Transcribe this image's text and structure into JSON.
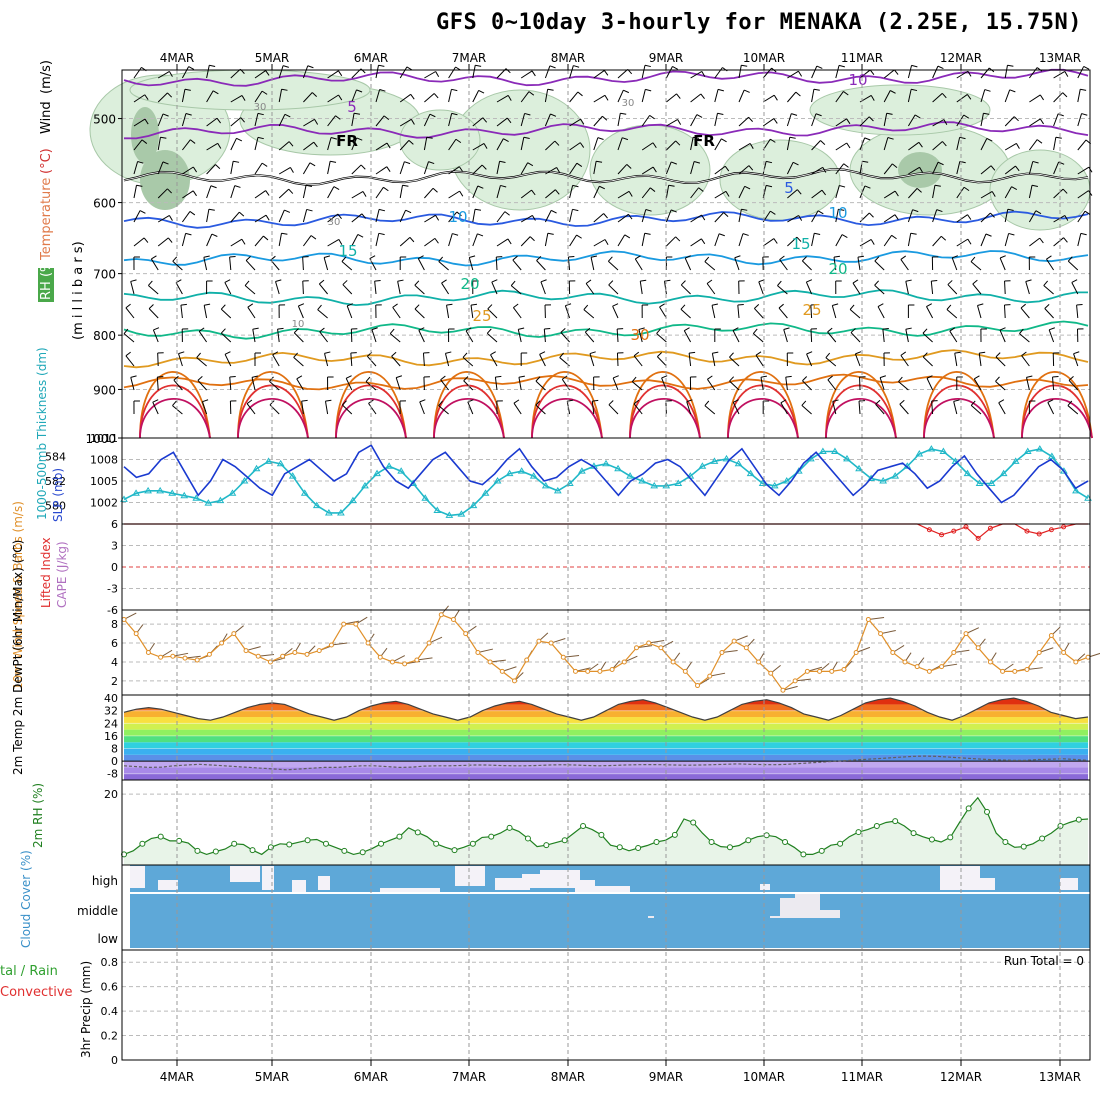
{
  "title": "GFS 0~10day 3-hourly for MENAKA (2.25E, 15.75N)",
  "dates": [
    "4MAR",
    "5MAR",
    "6MAR",
    "7MAR",
    "8MAR",
    "9MAR",
    "10MAR",
    "11MAR",
    "12MAR",
    "13MAR"
  ],
  "chart_data": [
    {
      "type": "contour",
      "panel": "upper-air",
      "ylabel_parts": [
        "RH (%)",
        "Temperature",
        "(°C)",
        "Wind",
        "(m/s)",
        "(m i l l i b a r s)"
      ],
      "yticks": [
        500,
        600,
        700,
        800,
        900,
        1000
      ],
      "ylim": [
        1000,
        450
      ],
      "y_scale": "log-pressure",
      "contour_labels": [
        "10",
        "5",
        "FR",
        "FR",
        "5",
        "10",
        "10",
        "15",
        "15",
        "20",
        "20",
        "25",
        "25",
        "30",
        "30",
        "30",
        "30",
        "10"
      ],
      "isotherms": [
        {
          "label": "10",
          "level_hPa": 460,
          "color": "#8a2ab8"
        },
        {
          "label": "5",
          "level_hPa": 515,
          "color": "#8a2ab8"
        },
        {
          "label": "FR",
          "level_hPa": 570,
          "color": "#000000"
        },
        {
          "label": "5",
          "level_hPa": 625,
          "color": "#2a5ae0"
        },
        {
          "label": "10",
          "level_hPa": 680,
          "color": "#1a9ae0"
        },
        {
          "label": "15",
          "level_hPa": 740,
          "color": "#10b0a8"
        },
        {
          "label": "20",
          "level_hPa": 795,
          "color": "#10b888"
        },
        {
          "label": "25",
          "level_hPa": 845,
          "color": "#e09a20"
        },
        {
          "label": "30",
          "level_hPa": 890,
          "color": "#e07010"
        }
      ]
    },
    {
      "type": "line",
      "panel": "thickness-slp",
      "ylabel_left": "1000-500mb Thickness (dm)",
      "ylabel_right": "SLP (mb)",
      "yticks_left": [
        580,
        582,
        584
      ],
      "yticks_right": [
        1002,
        1005,
        1008,
        1011
      ],
      "series": [
        {
          "name": "SLP (mb)",
          "color": "#1a3ad0",
          "values": [
            1007,
            1005.5,
            1006,
            1008,
            1009,
            1006,
            1003,
            1005,
            1008,
            1007,
            1005.5,
            1004,
            1003,
            1006,
            1007,
            1008,
            1006.5,
            1005,
            1006,
            1009,
            1010,
            1007,
            1005,
            1004,
            1006,
            1008,
            1009,
            1007,
            1005,
            1004.5,
            1006,
            1008,
            1009.5,
            1007,
            1005,
            1005.5,
            1007,
            1008,
            1007,
            1005,
            1003,
            1005,
            1006,
            1007.5,
            1008,
            1007,
            1005,
            1003,
            1005.5,
            1008,
            1009.5,
            1007,
            1004.5,
            1003,
            1005,
            1007.5,
            1009,
            1007,
            1005,
            1003,
            1004.5,
            1006.5,
            1007,
            1007.5,
            1006,
            1004,
            1005,
            1007,
            1008.5,
            1006,
            1004,
            1002,
            1003,
            1005,
            1007,
            1008,
            1006.5,
            1004,
            1005
          ]
        },
        {
          "name": "1000-500mb Thickness (dm)",
          "color": "#20b8c8",
          "values": [
            580.5,
            581,
            581.2,
            581.2,
            581,
            580.8,
            580.6,
            580.2,
            580.4,
            581,
            582,
            583,
            583.6,
            583.4,
            582.4,
            581,
            580,
            579.4,
            579.4,
            580.4,
            581.6,
            582.6,
            583.2,
            582.8,
            581.8,
            580.6,
            579.6,
            579.2,
            579.3,
            580,
            581,
            582,
            582.6,
            582.8,
            582.4,
            581.6,
            581.2,
            581.8,
            582.8,
            583.2,
            583.4,
            583,
            582.4,
            582,
            581.6,
            581.6,
            581.8,
            582.4,
            583.2,
            583.6,
            583.8,
            583.4,
            582.6,
            581.8,
            581.6,
            582,
            582.8,
            583.8,
            584.4,
            584.4,
            583.8,
            583,
            582.2,
            582,
            582.4,
            583.2,
            584.2,
            584.6,
            584.4,
            583.6,
            582.6,
            581.8,
            581.8,
            582.6,
            583.6,
            584.4,
            584.6,
            584,
            582.8,
            581.2,
            580.6
          ]
        }
      ]
    },
    {
      "type": "line",
      "panel": "stability",
      "ylabel_left": "Lifted Index",
      "ylabel_right": "CAPE (J/kg)",
      "yticks": [
        6,
        3,
        0,
        -3,
        -6
      ],
      "ylim": [
        6,
        -6
      ],
      "series": [
        {
          "name": "Lifted Index",
          "color": "#e02020",
          "values": [
            6,
            6,
            6,
            6,
            6,
            6,
            6,
            6,
            6,
            6,
            6,
            6,
            6,
            6,
            6,
            6,
            6,
            6,
            6,
            6,
            6,
            6,
            6,
            6,
            6,
            6,
            6,
            6,
            6,
            6,
            6,
            6,
            6,
            6,
            6,
            6,
            6,
            6,
            6,
            6,
            6,
            6,
            6,
            6,
            6,
            6,
            6,
            6,
            6,
            6,
            6,
            6,
            6,
            6,
            6,
            6,
            6,
            6,
            6,
            6,
            6,
            6,
            6,
            6,
            6,
            6,
            5.2,
            4.5,
            5,
            5.6,
            4,
            5.4,
            6,
            6,
            5,
            4.6,
            5.2,
            5.6,
            6,
            6
          ]
        }
      ]
    },
    {
      "type": "line",
      "panel": "10m-wind",
      "ylabel": "10m Wind Speed & Barbs (m/s)",
      "yticks": [
        2,
        4,
        6,
        8
      ],
      "ylim": [
        0.5,
        9.5
      ],
      "series": [
        {
          "name": "10m Wind Speed (m/s)",
          "color": "#e0902a",
          "values": [
            8.5,
            7,
            5,
            4.5,
            4.6,
            4.4,
            4.2,
            4.8,
            6,
            7,
            5.2,
            4.6,
            4,
            4.6,
            5,
            4.8,
            5.2,
            5.8,
            8,
            8,
            6,
            4.5,
            4,
            3.8,
            4.2,
            6,
            9,
            8.5,
            7,
            5,
            4,
            3,
            2,
            4.2,
            6.2,
            6,
            4.5,
            3,
            3,
            3,
            3.2,
            4,
            5.5,
            6,
            5.5,
            4,
            3,
            1.5,
            2.5,
            5,
            6.2,
            5.5,
            4,
            2.8,
            1,
            2,
            3,
            3,
            3,
            3.2,
            5,
            8.5,
            7,
            5,
            4,
            3.5,
            3,
            3.5,
            5,
            7,
            5.5,
            4,
            3,
            3,
            3.2,
            5,
            6.8,
            5,
            4,
            4.5
          ]
        }
      ]
    },
    {
      "type": "area",
      "panel": "2m-temp",
      "ylabel": "2m Temp 2m DewPt (6hr Min/Max) (°C)",
      "yticks": [
        40,
        32,
        24,
        16,
        8,
        0,
        -8
      ],
      "ylim": [
        -12,
        42
      ],
      "series": [
        {
          "name": "2m Temp",
          "color": "#b01010",
          "values": [
            31,
            33,
            34,
            33,
            31,
            29,
            27,
            26,
            28,
            31,
            34,
            36,
            37,
            36,
            33,
            30,
            28,
            26,
            28,
            32,
            35,
            37,
            38,
            36,
            33,
            30,
            28,
            26,
            28,
            32,
            35,
            37,
            38,
            36,
            33,
            30,
            28,
            26,
            28,
            32,
            36,
            38,
            39,
            37,
            34,
            31,
            28,
            26,
            28,
            32,
            36,
            38,
            39,
            37,
            34,
            30,
            28,
            26,
            29,
            33,
            37,
            39,
            40,
            38,
            35,
            31,
            28,
            26,
            29,
            33,
            37,
            39,
            40,
            38,
            35,
            31,
            29,
            27,
            28
          ]
        },
        {
          "name": "2m DewPt",
          "color": "#909090",
          "values": [
            -3,
            -3.5,
            -4,
            -3.8,
            -3,
            -2.5,
            -2,
            -2.5,
            -3,
            -3.5,
            -4,
            -4.5,
            -5,
            -5.5,
            -5,
            -4.5,
            -4,
            -4,
            -3.5,
            -3,
            -3,
            -3.5,
            -4,
            -3.8,
            -3.2,
            -3,
            -3,
            -2.8,
            -2.5,
            -2.5,
            -2.8,
            -3,
            -3,
            -2.8,
            -2.5,
            -2.3,
            -2.5,
            -2.8,
            -3,
            -2.8,
            -2.5,
            -2.3,
            -2.2,
            -2.3,
            -2.5,
            -2.6,
            -2.5,
            -2.3,
            -2,
            -1.8,
            -2,
            -2.2,
            -2.3,
            -2,
            -1.5,
            -1,
            -0.5,
            0,
            0.5,
            1,
            1.5,
            2,
            2.5,
            3,
            3.2,
            3,
            2.5,
            2,
            1.5,
            1,
            0.8,
            0.5,
            0.5,
            1,
            1.2,
            1.5,
            1,
            0.5
          ]
        }
      ]
    },
    {
      "type": "line",
      "panel": "2m-rh",
      "ylabel": "2m RH (%)",
      "yticks": [
        20
      ],
      "ylim": [
        0,
        24
      ],
      "series": [
        {
          "name": "2m RH (%)",
          "color": "#208020",
          "values": [
            3,
            4,
            6,
            7.5,
            8,
            6.8,
            6.8,
            6.2,
            4,
            3,
            3.8,
            4.5,
            6,
            5.8,
            4.2,
            3,
            5,
            6,
            5.8,
            6.4,
            7,
            7.2,
            6,
            5,
            4,
            3,
            3.6,
            4.6,
            6,
            7,
            8,
            10.5,
            9.2,
            8,
            6,
            5,
            4.2,
            5,
            6,
            7.8,
            8,
            9,
            10.5,
            9.5,
            7.5,
            5.2,
            5.6,
            6.3,
            7,
            9,
            11,
            10,
            8.5,
            5.6,
            5,
            4,
            4.8,
            5.5,
            6.5,
            7,
            8.5,
            13,
            12,
            9,
            6.5,
            5.2,
            5,
            5.5,
            7,
            8,
            8.4,
            8,
            6.5,
            5,
            3,
            3,
            4,
            5.6,
            6,
            8,
            9.3,
            10,
            11,
            12,
            12.4,
            11,
            9,
            8,
            7.2,
            6.5,
            7.8,
            12,
            16,
            19,
            15,
            9,
            6.5,
            5,
            5.2,
            6,
            7.5,
            9,
            11,
            12,
            12.8,
            13
          ]
        }
      ]
    },
    {
      "type": "heatmap",
      "panel": "cloud-cover",
      "ylabel": "Cloud Cover (%)",
      "ytick_labels": [
        "high",
        "middle",
        "low"
      ],
      "layers": [
        "high",
        "middle",
        "low"
      ]
    },
    {
      "type": "line",
      "panel": "precip",
      "ylabel": "3hr Precip (mm)",
      "ylabel_left_parts": [
        "tal / Rain",
        "Convective"
      ],
      "yticks": [
        0,
        0.2,
        0.4,
        0.6,
        0.8
      ],
      "ylim": [
        0,
        0.9
      ],
      "annotation": "Run Total = 0",
      "series": [
        {
          "name": "Total / Rain",
          "color": "#20a020",
          "values": []
        },
        {
          "name": "Convective",
          "color": "#e02020",
          "values": []
        }
      ]
    }
  ]
}
